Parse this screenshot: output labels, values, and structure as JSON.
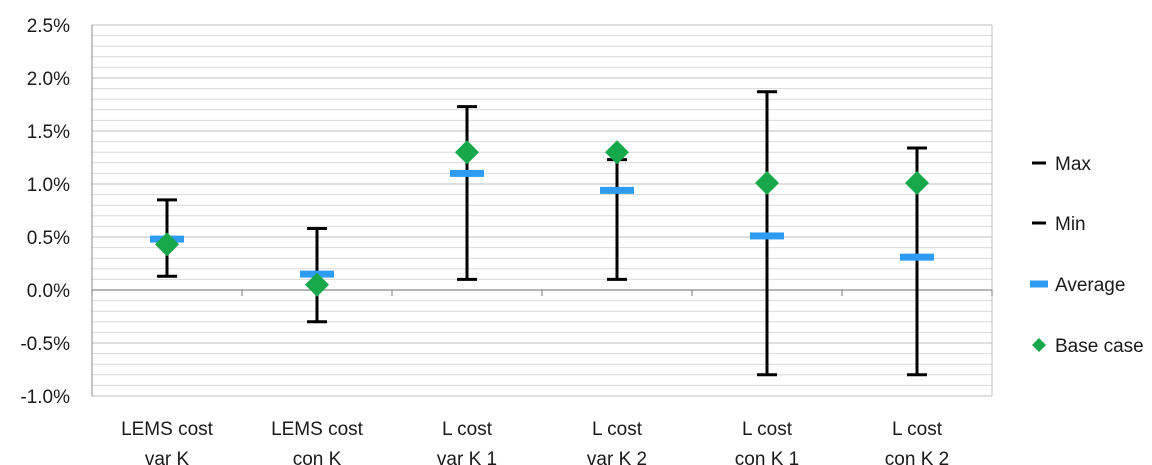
{
  "chart_data": {
    "type": "error-bar",
    "categories": [
      [
        "LEMS cost",
        "var K"
      ],
      [
        "LEMS cost",
        "con K"
      ],
      [
        "L cost",
        "var K 1"
      ],
      [
        "L cost",
        "var K 2"
      ],
      [
        "L cost",
        "con K 1"
      ],
      [
        "L cost",
        "con K 2"
      ]
    ],
    "series": [
      {
        "name": "Max",
        "values": [
          0.85,
          0.58,
          1.73,
          1.23,
          1.87,
          1.34
        ]
      },
      {
        "name": "Min",
        "values": [
          0.13,
          -0.3,
          0.1,
          0.1,
          -0.8,
          -0.8
        ]
      },
      {
        "name": "Average",
        "values": [
          0.48,
          0.15,
          1.1,
          0.94,
          0.51,
          0.31
        ]
      },
      {
        "name": "Base case",
        "values": [
          0.43,
          0.05,
          1.3,
          1.3,
          1.01,
          1.01
        ]
      }
    ],
    "ylim": [
      -1.0,
      2.5
    ],
    "y_ticks": [
      "2.5%",
      "2.0%",
      "1.5%",
      "1.0%",
      "0.5%",
      "0.0%",
      "-0.5%",
      "-1.0%"
    ],
    "y_tick_values": [
      2.5,
      2.0,
      1.5,
      1.0,
      0.5,
      0.0,
      -0.5,
      -1.0
    ],
    "y_unit": "%",
    "grid": "horizontal major and minor",
    "legend": {
      "position": "right",
      "entries": [
        "Max",
        "Min",
        "Average",
        "Base case"
      ]
    },
    "colors": {
      "range": "#000000",
      "average": "#2e9cf2",
      "base_case": "#16a84a",
      "grid_major": "#bfbfbf",
      "grid_minor": "#d9d9d9",
      "axis": "#8c8c8c"
    }
  }
}
